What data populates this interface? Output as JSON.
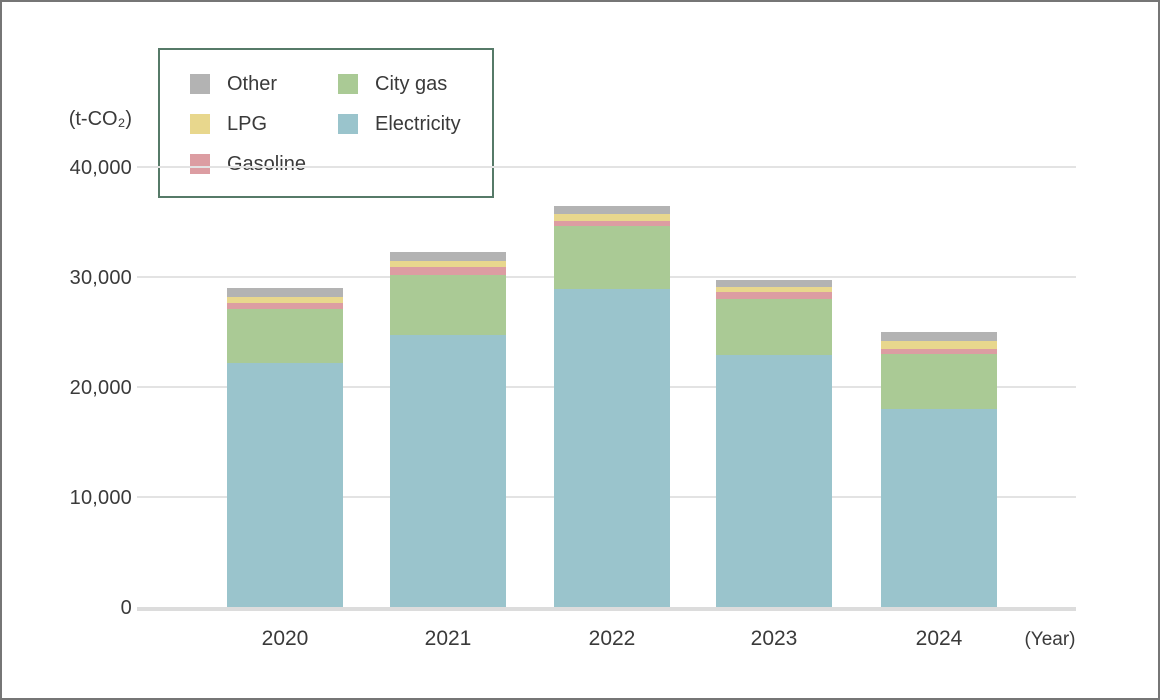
{
  "chart": {
    "y_axis_unit_label": "(t-CO₂)",
    "x_axis_unit_label": "(Year)",
    "y_tick_labels": [
      "0",
      "10,000",
      "20,000",
      "30,000",
      "40,000"
    ],
    "frame_border_color": "#767676",
    "legend_border_color": "#567a68",
    "gridline_color": "#e3e3e3",
    "text_color": "#3a3a3a"
  },
  "legend": {
    "items": [
      {
        "label": "Other",
        "color": "#b3b3b3"
      },
      {
        "label": "LPG",
        "color": "#e8d78d"
      },
      {
        "label": "Gasoline",
        "color": "#dc9da2"
      },
      {
        "label": "City gas",
        "color": "#aaca95"
      },
      {
        "label": "Electricity",
        "color": "#9ac4cc"
      }
    ]
  },
  "chart_data": {
    "type": "bar",
    "stacked": true,
    "title": "",
    "xlabel": "(Year)",
    "ylabel": "(t-CO₂)",
    "ylim": [
      0,
      40000
    ],
    "y_ticks": [
      0,
      10000,
      20000,
      30000,
      40000
    ],
    "grid": true,
    "legend_position": "top-left",
    "categories": [
      "2020",
      "2021",
      "2022",
      "2023",
      "2024"
    ],
    "series": [
      {
        "name": "Electricity",
        "color": "#9ac4cc",
        "values": [
          22200,
          24750,
          28900,
          22900,
          18000
        ]
      },
      {
        "name": "City gas",
        "color": "#aaca95",
        "values": [
          4900,
          5450,
          5700,
          5100,
          5000
        ]
      },
      {
        "name": "Gasoline",
        "color": "#dc9da2",
        "values": [
          550,
          700,
          450,
          650,
          450
        ]
      },
      {
        "name": "LPG",
        "color": "#e8d78d",
        "values": [
          550,
          550,
          650,
          450,
          750
        ]
      },
      {
        "name": "Other",
        "color": "#b3b3b3",
        "values": [
          800,
          800,
          750,
          650,
          800
        ]
      }
    ],
    "totals": [
      29000,
      32250,
      36450,
      29750,
      25000
    ]
  }
}
